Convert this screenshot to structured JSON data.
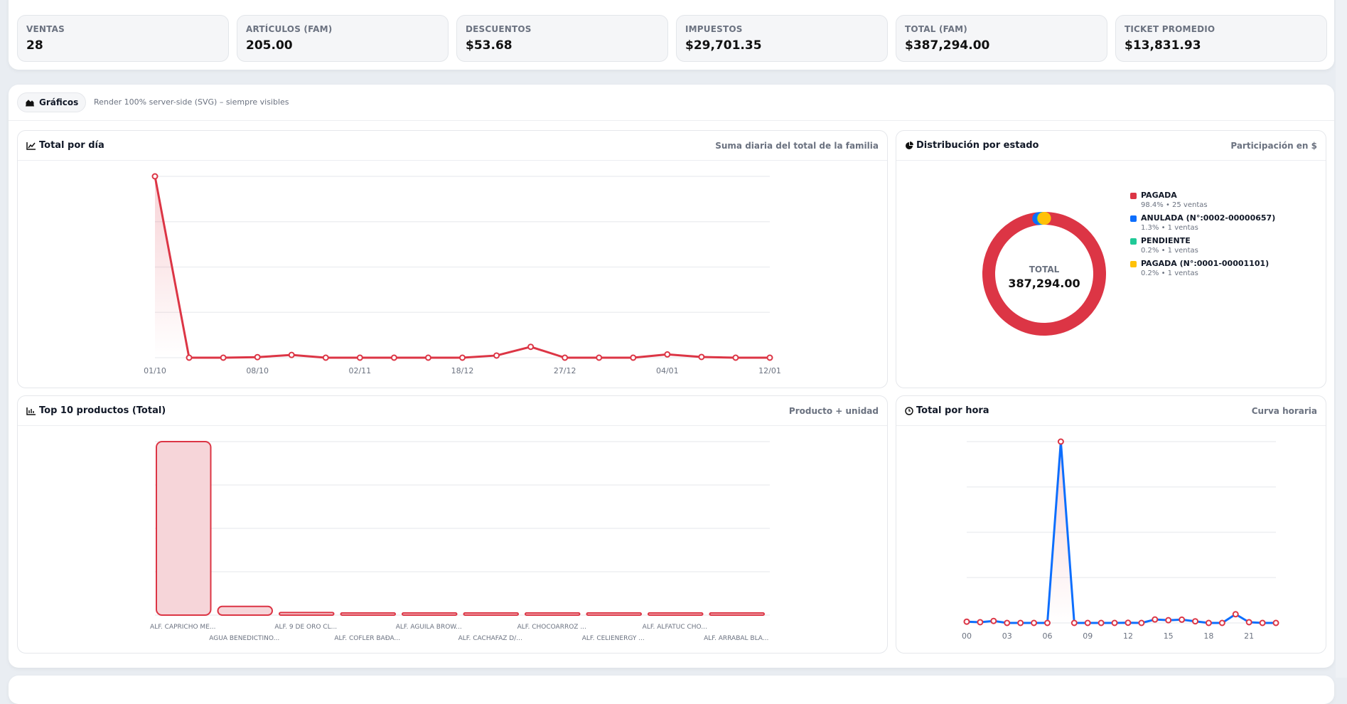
{
  "kpis": [
    {
      "label": "VENTAS",
      "value": "28"
    },
    {
      "label": "ARTÍCULOS (FAM)",
      "value": "205.00"
    },
    {
      "label": "DESCUENTOS",
      "value": "$53.68"
    },
    {
      "label": "IMPUESTOS",
      "value": "$29,701.35"
    },
    {
      "label": "TOTAL (FAM)",
      "value": "$387,294.00"
    },
    {
      "label": "TICKET PROMEDIO",
      "value": "$13,831.93"
    }
  ],
  "charts_section": {
    "title": "Gráficos",
    "note": "Render 100% server-side (SVG) – siempre visibles"
  },
  "colors": {
    "accent": "#dc3545",
    "blue": "#0d6efd",
    "green": "#20c997",
    "yellow": "#ffc107"
  },
  "chart_data": [
    {
      "type": "line",
      "title": "Total por día",
      "subtitle": "Suma diaria del total de la familia",
      "x_tick_labels": [
        "01/10",
        "08/10",
        "02/11",
        "18/12",
        "27/12",
        "04/01",
        "12/01"
      ],
      "values": [
        1.0,
        0,
        0,
        0.003,
        0.015,
        0,
        0,
        0,
        0,
        0,
        0.012,
        0.06,
        0,
        0,
        0,
        0.018,
        0.004,
        0,
        0
      ],
      "ylim": [
        0,
        1
      ],
      "grid": true
    },
    {
      "type": "pie",
      "title": "Distribución por estado",
      "subtitle": "Participación en $",
      "center_label": "TOTAL",
      "center_value": "387,294.00",
      "slices": [
        {
          "name": "PAGADA",
          "percent": 98.4,
          "detail": "98.4% • 25 ventas",
          "color": "#dc3545"
        },
        {
          "name": "ANULADA (N°:0002-00000657)",
          "percent": 1.3,
          "detail": "1.3% • 1 ventas",
          "color": "#0d6efd"
        },
        {
          "name": "PENDIENTE",
          "percent": 0.2,
          "detail": "0.2% • 1 ventas",
          "color": "#20c997"
        },
        {
          "name": "PAGADA (N°:0001-00001101)",
          "percent": 0.2,
          "detail": "0.2% • 1 ventas",
          "color": "#ffc107"
        }
      ],
      "legend": "right"
    },
    {
      "type": "bar",
      "title": "Top 10 productos (Total)",
      "subtitle": "Producto + unidad",
      "categories": [
        "ALF. CAPRICHO ME...",
        "AGUA BENEDICTINO...",
        "ALF. 9 DE ORO CL...",
        "ALF. COFLER BAÐA...",
        "ALF. AGUILA BROW...",
        "ALF. CACHAFAZ D/...",
        "ALF. CHOCOARROZ ...",
        "ALF. CELIENERGY ...",
        "ALF. ALFATUC CHO...",
        "ALF. ARRABAL BLA..."
      ],
      "values": [
        1.0,
        0.05,
        0.015,
        0.012,
        0.008,
        0.004,
        0.003,
        0.003,
        0.002,
        0.002
      ],
      "ylim": [
        0,
        1
      ],
      "grid": true
    },
    {
      "type": "line",
      "title": "Total por hora",
      "subtitle": "Curva horaria",
      "x_tick_labels": [
        "00",
        "03",
        "06",
        "09",
        "12",
        "15",
        "18",
        "21"
      ],
      "values": [
        0.007,
        0.004,
        0.011,
        0,
        0,
        0,
        0,
        1.0,
        0,
        0,
        0,
        0,
        0.001,
        0,
        0.019,
        0.015,
        0.018,
        0.009,
        0,
        0,
        0.048,
        0.004,
        0,
        0
      ],
      "ylim": [
        0,
        1
      ],
      "grid": true
    }
  ]
}
